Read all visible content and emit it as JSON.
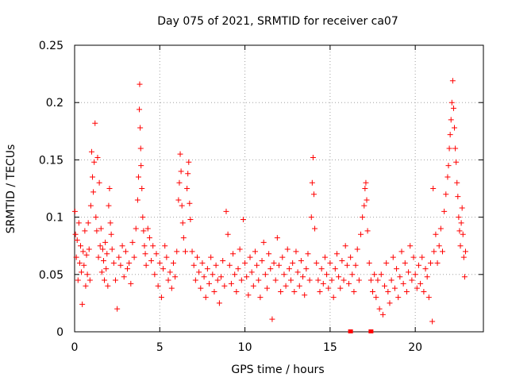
{
  "chart_data": {
    "type": "scatter",
    "title": "Day 075 of 2021, SRMTID for receiver ca07",
    "xlabel": "GPS time / hours",
    "ylabel": "SRMTID / TECUs",
    "xlim": [
      0,
      24
    ],
    "ylim": [
      0,
      0.25
    ],
    "x_ticks": [
      "0",
      "5",
      "10",
      "15",
      "20"
    ],
    "x_tick_values": [
      0,
      5,
      10,
      15,
      20
    ],
    "y_ticks": [
      "0",
      "0.05",
      "0.1",
      "0.15",
      "0.2",
      "0.25"
    ],
    "y_tick_values": [
      0,
      0.05,
      0.1,
      0.15,
      0.2,
      0.25
    ],
    "grid": true,
    "series_color": "#ff0000",
    "marker": "plus",
    "gap_markers_x": [
      16.2,
      17.4
    ],
    "series": [
      {
        "name": "SRMTID",
        "points": [
          [
            0.02,
            0.105
          ],
          [
            0.05,
            0.085
          ],
          [
            0.1,
            0.065
          ],
          [
            0.15,
            0.08
          ],
          [
            0.2,
            0.045
          ],
          [
            0.25,
            0.095
          ],
          [
            0.3,
            0.06
          ],
          [
            0.35,
            0.075
          ],
          [
            0.4,
            0.052
          ],
          [
            0.45,
            0.024
          ],
          [
            0.5,
            0.07
          ],
          [
            0.55,
            0.058
          ],
          [
            0.6,
            0.088
          ],
          [
            0.65,
            0.04
          ],
          [
            0.7,
            0.067
          ],
          [
            0.75,
            0.05
          ],
          [
            0.8,
            0.095
          ],
          [
            0.85,
            0.072
          ],
          [
            0.9,
            0.045
          ],
          [
            0.95,
            0.11
          ],
          [
            1.0,
            0.157
          ],
          [
            1.05,
            0.135
          ],
          [
            1.1,
            0.122
          ],
          [
            1.15,
            0.148
          ],
          [
            1.2,
            0.182
          ],
          [
            1.25,
            0.1
          ],
          [
            1.3,
            0.088
          ],
          [
            1.35,
            0.152
          ],
          [
            1.4,
            0.065
          ],
          [
            1.45,
            0.13
          ],
          [
            1.5,
            0.075
          ],
          [
            1.55,
            0.09
          ],
          [
            1.6,
            0.052
          ],
          [
            1.65,
            0.072
          ],
          [
            1.7,
            0.062
          ],
          [
            1.75,
            0.045
          ],
          [
            1.8,
            0.078
          ],
          [
            1.85,
            0.055
          ],
          [
            1.9,
            0.068
          ],
          [
            1.95,
            0.04
          ],
          [
            2.0,
            0.11
          ],
          [
            2.05,
            0.125
          ],
          [
            2.1,
            0.095
          ],
          [
            2.15,
            0.085
          ],
          [
            2.2,
            0.072
          ],
          [
            2.3,
            0.06
          ],
          [
            2.4,
            0.045
          ],
          [
            2.5,
            0.02
          ],
          [
            2.6,
            0.065
          ],
          [
            2.7,
            0.058
          ],
          [
            2.8,
            0.075
          ],
          [
            2.9,
            0.048
          ],
          [
            3.0,
            0.07
          ],
          [
            3.1,
            0.055
          ],
          [
            3.2,
            0.06
          ],
          [
            3.3,
            0.042
          ],
          [
            3.4,
            0.078
          ],
          [
            3.5,
            0.065
          ],
          [
            3.6,
            0.09
          ],
          [
            3.7,
            0.115
          ],
          [
            3.75,
            0.135
          ],
          [
            3.8,
            0.194
          ],
          [
            3.82,
            0.216
          ],
          [
            3.85,
            0.178
          ],
          [
            3.88,
            0.16
          ],
          [
            3.9,
            0.145
          ],
          [
            3.95,
            0.125
          ],
          [
            4.0,
            0.1
          ],
          [
            4.05,
            0.088
          ],
          [
            4.1,
            0.075
          ],
          [
            4.15,
            0.068
          ],
          [
            4.2,
            0.058
          ],
          [
            4.3,
            0.09
          ],
          [
            4.4,
            0.082
          ],
          [
            4.5,
            0.062
          ],
          [
            4.6,
            0.075
          ],
          [
            4.7,
            0.05
          ],
          [
            4.8,
            0.068
          ],
          [
            4.9,
            0.04
          ],
          [
            5.0,
            0.06
          ],
          [
            5.1,
            0.03
          ],
          [
            5.2,
            0.055
          ],
          [
            5.3,
            0.075
          ],
          [
            5.4,
            0.065
          ],
          [
            5.5,
            0.045
          ],
          [
            5.6,
            0.052
          ],
          [
            5.7,
            0.038
          ],
          [
            5.8,
            0.06
          ],
          [
            5.9,
            0.048
          ],
          [
            6.0,
            0.07
          ],
          [
            6.1,
            0.115
          ],
          [
            6.15,
            0.13
          ],
          [
            6.2,
            0.155
          ],
          [
            6.25,
            0.14
          ],
          [
            6.3,
            0.11
          ],
          [
            6.35,
            0.095
          ],
          [
            6.4,
            0.082
          ],
          [
            6.5,
            0.07
          ],
          [
            6.6,
            0.125
          ],
          [
            6.65,
            0.138
          ],
          [
            6.7,
            0.148
          ],
          [
            6.75,
            0.112
          ],
          [
            6.8,
            0.098
          ],
          [
            6.9,
            0.07
          ],
          [
            7.0,
            0.058
          ],
          [
            7.1,
            0.045
          ],
          [
            7.2,
            0.065
          ],
          [
            7.3,
            0.052
          ],
          [
            7.4,
            0.038
          ],
          [
            7.5,
            0.06
          ],
          [
            7.6,
            0.048
          ],
          [
            7.7,
            0.03
          ],
          [
            7.8,
            0.055
          ],
          [
            7.9,
            0.042
          ],
          [
            8.0,
            0.065
          ],
          [
            8.1,
            0.05
          ],
          [
            8.2,
            0.035
          ],
          [
            8.3,
            0.058
          ],
          [
            8.4,
            0.045
          ],
          [
            8.5,
            0.025
          ],
          [
            8.6,
            0.048
          ],
          [
            8.7,
            0.062
          ],
          [
            8.8,
            0.04
          ],
          [
            8.9,
            0.105
          ],
          [
            9.0,
            0.085
          ],
          [
            9.1,
            0.058
          ],
          [
            9.2,
            0.042
          ],
          [
            9.3,
            0.068
          ],
          [
            9.4,
            0.05
          ],
          [
            9.5,
            0.035
          ],
          [
            9.6,
            0.055
          ],
          [
            9.7,
            0.072
          ],
          [
            9.8,
            0.045
          ],
          [
            9.9,
            0.098
          ],
          [
            10.0,
            0.06
          ],
          [
            10.1,
            0.048
          ],
          [
            10.2,
            0.032
          ],
          [
            10.3,
            0.065
          ],
          [
            10.4,
            0.052
          ],
          [
            10.5,
            0.04
          ],
          [
            10.6,
            0.07
          ],
          [
            10.7,
            0.058
          ],
          [
            10.8,
            0.045
          ],
          [
            10.9,
            0.03
          ],
          [
            11.0,
            0.062
          ],
          [
            11.1,
            0.078
          ],
          [
            11.2,
            0.05
          ],
          [
            11.3,
            0.038
          ],
          [
            11.4,
            0.068
          ],
          [
            11.5,
            0.055
          ],
          [
            11.6,
            0.011
          ],
          [
            11.7,
            0.06
          ],
          [
            11.8,
            0.045
          ],
          [
            11.9,
            0.082
          ],
          [
            12.0,
            0.058
          ],
          [
            12.1,
            0.035
          ],
          [
            12.2,
            0.065
          ],
          [
            12.3,
            0.05
          ],
          [
            12.4,
            0.04
          ],
          [
            12.5,
            0.072
          ],
          [
            12.6,
            0.055
          ],
          [
            12.7,
            0.045
          ],
          [
            12.8,
            0.06
          ],
          [
            12.9,
            0.035
          ],
          [
            13.0,
            0.07
          ],
          [
            13.1,
            0.052
          ],
          [
            13.2,
            0.04
          ],
          [
            13.3,
            0.062
          ],
          [
            13.4,
            0.048
          ],
          [
            13.5,
            0.032
          ],
          [
            13.6,
            0.055
          ],
          [
            13.7,
            0.068
          ],
          [
            13.8,
            0.045
          ],
          [
            13.9,
            0.1
          ],
          [
            13.95,
            0.13
          ],
          [
            14.0,
            0.152
          ],
          [
            14.05,
            0.12
          ],
          [
            14.1,
            0.09
          ],
          [
            14.2,
            0.06
          ],
          [
            14.3,
            0.045
          ],
          [
            14.4,
            0.035
          ],
          [
            14.5,
            0.055
          ],
          [
            14.6,
            0.042
          ],
          [
            14.7,
            0.065
          ],
          [
            14.8,
            0.05
          ],
          [
            14.9,
            0.038
          ],
          [
            15.0,
            0.06
          ],
          [
            15.1,
            0.045
          ],
          [
            15.2,
            0.03
          ],
          [
            15.3,
            0.055
          ],
          [
            15.4,
            0.068
          ],
          [
            15.5,
            0.048
          ],
          [
            15.6,
            0.038
          ],
          [
            15.7,
            0.062
          ],
          [
            15.8,
            0.045
          ],
          [
            15.9,
            0.075
          ],
          [
            16.0,
            0.058
          ],
          [
            16.1,
            0.042
          ],
          [
            16.2,
            0.065
          ],
          [
            16.3,
            0.05
          ],
          [
            16.4,
            0.035
          ],
          [
            16.5,
            0.058
          ],
          [
            16.6,
            0.072
          ],
          [
            16.7,
            0.045
          ],
          [
            16.8,
            0.085
          ],
          [
            16.9,
            0.1
          ],
          [
            17.0,
            0.11
          ],
          [
            17.05,
            0.125
          ],
          [
            17.1,
            0.13
          ],
          [
            17.15,
            0.115
          ],
          [
            17.2,
            0.088
          ],
          [
            17.3,
            0.06
          ],
          [
            17.4,
            0.045
          ],
          [
            17.5,
            0.035
          ],
          [
            17.6,
            0.05
          ],
          [
            17.7,
            0.03
          ],
          [
            17.8,
            0.045
          ],
          [
            17.9,
            0.02
          ],
          [
            18.0,
            0.05
          ],
          [
            18.1,
            0.015
          ],
          [
            18.2,
            0.04
          ],
          [
            18.3,
            0.06
          ],
          [
            18.4,
            0.035
          ],
          [
            18.5,
            0.025
          ],
          [
            18.6,
            0.045
          ],
          [
            18.7,
            0.065
          ],
          [
            18.8,
            0.038
          ],
          [
            18.9,
            0.055
          ],
          [
            19.0,
            0.03
          ],
          [
            19.1,
            0.048
          ],
          [
            19.2,
            0.07
          ],
          [
            19.3,
            0.042
          ],
          [
            19.4,
            0.06
          ],
          [
            19.5,
            0.035
          ],
          [
            19.6,
            0.052
          ],
          [
            19.7,
            0.075
          ],
          [
            19.8,
            0.045
          ],
          [
            19.9,
            0.065
          ],
          [
            20.0,
            0.05
          ],
          [
            20.1,
            0.038
          ],
          [
            20.2,
            0.058
          ],
          [
            20.3,
            0.042
          ],
          [
            20.4,
            0.065
          ],
          [
            20.5,
            0.035
          ],
          [
            20.6,
            0.055
          ],
          [
            20.7,
            0.048
          ],
          [
            20.8,
            0.03
          ],
          [
            20.9,
            0.06
          ],
          [
            21.0,
            0.009
          ],
          [
            21.05,
            0.125
          ],
          [
            21.1,
            0.07
          ],
          [
            21.2,
            0.085
          ],
          [
            21.3,
            0.06
          ],
          [
            21.4,
            0.075
          ],
          [
            21.5,
            0.09
          ],
          [
            21.6,
            0.07
          ],
          [
            21.7,
            0.105
          ],
          [
            21.8,
            0.12
          ],
          [
            21.9,
            0.135
          ],
          [
            21.95,
            0.145
          ],
          [
            22.0,
            0.16
          ],
          [
            22.05,
            0.172
          ],
          [
            22.1,
            0.185
          ],
          [
            22.15,
            0.2
          ],
          [
            22.2,
            0.219
          ],
          [
            22.25,
            0.195
          ],
          [
            22.3,
            0.178
          ],
          [
            22.35,
            0.16
          ],
          [
            22.4,
            0.148
          ],
          [
            22.45,
            0.13
          ],
          [
            22.5,
            0.118
          ],
          [
            22.55,
            0.1
          ],
          [
            22.6,
            0.088
          ],
          [
            22.65,
            0.075
          ],
          [
            22.7,
            0.095
          ],
          [
            22.75,
            0.108
          ],
          [
            22.8,
            0.085
          ],
          [
            22.85,
            0.065
          ],
          [
            22.9,
            0.048
          ],
          [
            22.95,
            0.07
          ]
        ]
      }
    ]
  }
}
